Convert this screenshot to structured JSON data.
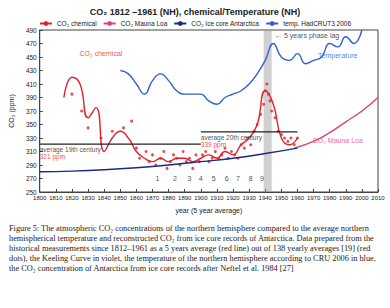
{
  "chart_data": {
    "type": "line",
    "title": "CO₂ 1812 –1961 (NH), chemical/Temperature (NH)",
    "x_label": "year (5 year average)",
    "y_label": "CO₂ (ppm)",
    "xlim": [
      1800,
      2010
    ],
    "xticks": [
      1800,
      1810,
      1820,
      1830,
      1840,
      1850,
      1860,
      1870,
      1880,
      1890,
      1900,
      1910,
      1920,
      1930,
      1940,
      1950,
      1960,
      1970,
      1980,
      1990,
      2000,
      2010
    ],
    "ylim": [
      250,
      490
    ],
    "yticks": [
      250,
      270,
      290,
      310,
      330,
      350,
      370,
      390,
      410,
      430,
      450,
      470,
      490
    ],
    "grid": false,
    "legend": "top",
    "series": [
      {
        "name": "CO₂ chemical",
        "color": "#e3202a",
        "type": "line",
        "x": [
          1815,
          1820,
          1825,
          1830,
          1835,
          1840,
          1845,
          1850,
          1855,
          1860,
          1865,
          1870,
          1875,
          1880,
          1885,
          1890,
          1895,
          1900,
          1905,
          1910,
          1915,
          1920,
          1925,
          1930,
          1935,
          1940,
          1945,
          1950,
          1955,
          1960
        ],
        "values": [
          390,
          420,
          410,
          360,
          375,
          310,
          330,
          340,
          330,
          310,
          300,
          295,
          300,
          295,
          300,
          300,
          295,
          300,
          305,
          300,
          310,
          305,
          320,
          330,
          350,
          400,
          380,
          330,
          320,
          330
        ]
      },
      {
        "name": "CO₂ Mauna Loa",
        "color": "#e0407a",
        "type": "line",
        "x": [
          1958,
          1970,
          1980,
          1990,
          2000,
          2010
        ],
        "values": [
          315,
          325,
          338,
          354,
          370,
          390
        ]
      },
      {
        "name": "CO₂ Ice core Antarctica",
        "color": "#1a2a80",
        "type": "line",
        "x": [
          1800,
          1820,
          1840,
          1860,
          1880,
          1900,
          1920,
          1940,
          1960
        ],
        "values": [
          280,
          281,
          283,
          286,
          290,
          295,
          300,
          307,
          315
        ]
      },
      {
        "name": "temp. HadCRUT3 2006",
        "color": "#3060d0",
        "type": "line",
        "x": [
          1850,
          1855,
          1860,
          1865,
          1870,
          1875,
          1880,
          1885,
          1890,
          1895,
          1900,
          1905,
          1910,
          1915,
          1920,
          1925,
          1930,
          1935,
          1940,
          1945,
          1950,
          1955,
          1960,
          1965,
          1970,
          1975,
          1980,
          1985,
          1990,
          1995,
          2000
        ],
        "values": [
          430,
          425,
          410,
          395,
          415,
          425,
          415,
          400,
          395,
          395,
          395,
          385,
          380,
          390,
          395,
          400,
          410,
          425,
          445,
          470,
          450,
          445,
          455,
          440,
          445,
          450,
          470,
          465,
          480,
          470,
          490
        ]
      },
      {
        "color": "#e3202a",
        "type": "scatter",
        "marker": "circle",
        "x": [
          1820,
          1826,
          1830,
          1838,
          1845,
          1852,
          1857,
          1860,
          1862,
          1866,
          1868,
          1870,
          1872,
          1875,
          1877,
          1879,
          1881,
          1883,
          1885,
          1887,
          1889,
          1891,
          1893,
          1895,
          1897,
          1899,
          1901,
          1903,
          1905,
          1907,
          1909,
          1911,
          1913,
          1915,
          1917,
          1919,
          1921,
          1923,
          1925,
          1927,
          1929,
          1931,
          1933,
          1935,
          1937,
          1939,
          1940,
          1941,
          1942,
          1943,
          1944,
          1946,
          1948,
          1950,
          1952,
          1954,
          1956,
          1958,
          1960
        ],
        "values": [
          395,
          370,
          345,
          330,
          340,
          345,
          355,
          315,
          300,
          310,
          295,
          305,
          290,
          300,
          310,
          285,
          295,
          305,
          300,
          290,
          310,
          295,
          300,
          285,
          305,
          295,
          305,
          310,
          295,
          300,
          310,
          300,
          305,
          315,
          300,
          310,
          305,
          300,
          320,
          315,
          330,
          320,
          340,
          350,
          365,
          380,
          400,
          410,
          395,
          385,
          370,
          360,
          340,
          335,
          330,
          325,
          330,
          320,
          330
        ]
      }
    ],
    "reference_lines": [
      {
        "label": "average 19th century",
        "value_label": "321 ppm",
        "value": 321,
        "x": [
          1800,
          1900
        ],
        "color": "#222222"
      },
      {
        "label": "average 20th century",
        "value_label": "339 ppm",
        "value": 339,
        "x": [
          1900,
          1960
        ],
        "color": "#222222"
      }
    ],
    "shaded": [
      [
        1939,
        1944
      ]
    ],
    "annotations": [
      {
        "text": "CO₂ chemical",
        "x": 1838,
        "y": 455,
        "color": "#e3202a"
      },
      {
        "text": "Temperature",
        "x": 1985,
        "y": 452,
        "color": "#3060d0"
      },
      {
        "text": "CO₂ Mauna Loa",
        "x": 1985,
        "y": 326,
        "color": "#e0407a"
      },
      {
        "text": "← 5 years phase lag",
        "x": 1966,
        "y": 482,
        "color": "#222222"
      },
      {
        "text": "1",
        "x": 1873,
        "y": 270,
        "color": "#222222"
      },
      {
        "text": "2",
        "x": 1884,
        "y": 270,
        "color": "#222222"
      },
      {
        "text": "3",
        "x": 1893,
        "y": 270,
        "color": "#222222"
      },
      {
        "text": "4",
        "x": 1900,
        "y": 270,
        "color": "#222222"
      },
      {
        "text": "5",
        "x": 1908,
        "y": 270,
        "color": "#222222"
      },
      {
        "text": "6",
        "x": 1916,
        "y": 270,
        "color": "#222222"
      },
      {
        "text": "7",
        "x": 1923,
        "y": 270,
        "color": "#222222"
      },
      {
        "text": "8",
        "x": 1931,
        "y": 270,
        "color": "#222222"
      },
      {
        "text": "9",
        "x": 1938,
        "y": 270,
        "color": "#222222"
      }
    ]
  },
  "caption": "Figure 5: The atmospheric CO₂ concentrations of the northern hemisphere compared to the average northern hemispherical temperature and reconstructed CO₂ from ice core records of Antarctica. Data prepared from the historical measurements since 1812–1961 as a 5 years average (red line) out of 138 yearly averages [19] (red dots), the Keeling Curve in violet, the temperature of the northern hemisphere according to CRU 2006 in blue, the CO₂ concentration of Antarctica from ice core records after Neftel et al. 1984 [27]"
}
